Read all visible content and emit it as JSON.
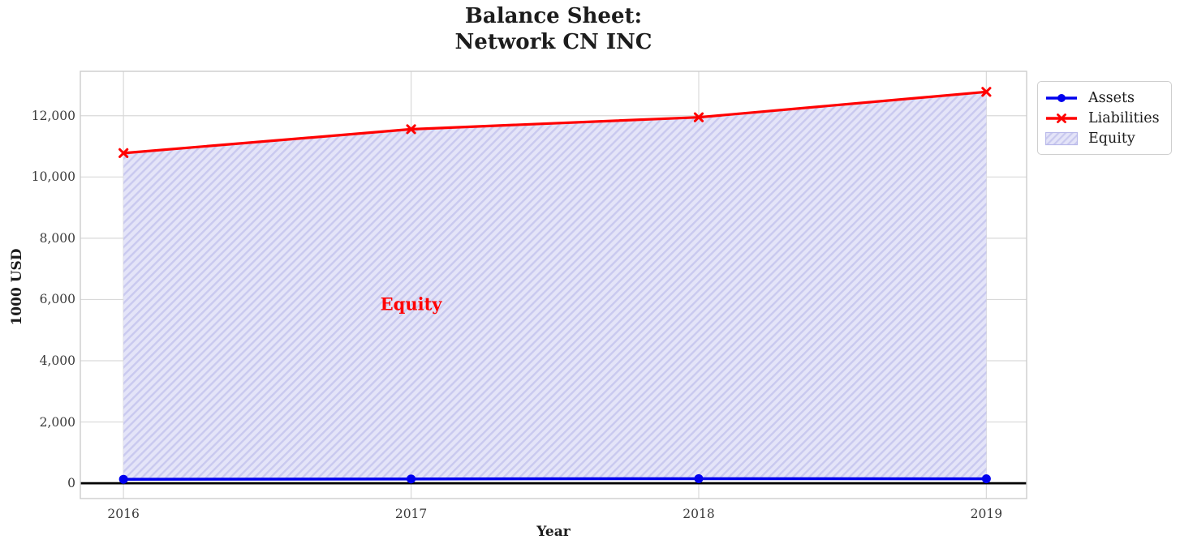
{
  "title": {
    "line1": "Balance Sheet:",
    "line2": "Network CN INC"
  },
  "axes": {
    "xlabel": "Year",
    "ylabel": "1000 USD"
  },
  "annotation": {
    "text": "Equity",
    "color": "#ff0000"
  },
  "legend": {
    "position": "outside upper right",
    "items": [
      {
        "label": "Assets",
        "kind": "line",
        "marker": "circle",
        "color": "#0000ee"
      },
      {
        "label": "Liabilities",
        "kind": "line",
        "marker": "x",
        "color": "#ff0000"
      },
      {
        "label": "Equity",
        "kind": "patch",
        "facecolor": "#e4e4f8",
        "hatchcolor": "#c9c9ef",
        "edgecolor": "#b9b9ea"
      }
    ]
  },
  "chart_data": {
    "type": "line-with-area",
    "title": "Balance Sheet:\nNetwork CN INC",
    "xlabel": "Year",
    "ylabel": "1000 USD",
    "x": [
      2016,
      2017,
      2018,
      2019
    ],
    "series": [
      {
        "name": "Assets",
        "color": "#0000ee",
        "marker": "circle",
        "line_width": 3.5,
        "values": [
          130,
          140,
          150,
          145
        ]
      },
      {
        "name": "Liabilities",
        "color": "#ff0000",
        "marker": "x",
        "line_width": 3.2,
        "values": [
          10780,
          11560,
          11950,
          12780
        ]
      }
    ],
    "area_between": {
      "name": "Equity",
      "upper": "Liabilities",
      "lower": "Assets",
      "hatch": "/",
      "facecolor": "#e4e4f8",
      "hatchcolor": "#c9c9ef"
    },
    "annotation": {
      "text": "Equity",
      "x": 2017,
      "y": 5850,
      "color": "#ff0000"
    },
    "yticks": {
      "values": [
        0,
        2000,
        4000,
        6000,
        8000,
        10000,
        12000
      ],
      "labels": [
        "0",
        "2,000",
        "4,000",
        "6,000",
        "8,000",
        "10,000",
        "12,000"
      ]
    },
    "xticks": {
      "values": [
        2016,
        2017,
        2018,
        2019
      ],
      "labels": [
        "2016",
        "2017",
        "2018",
        "2019"
      ]
    },
    "ylim": [
      -500,
      13450
    ],
    "xlim": [
      2015.85,
      2019.14
    ],
    "grid": true,
    "grid_color": "#d9d9d9",
    "spine_color": "#cccccc",
    "zero_line": {
      "y": 0,
      "color": "#000000"
    },
    "legend_position": "outside upper right"
  }
}
